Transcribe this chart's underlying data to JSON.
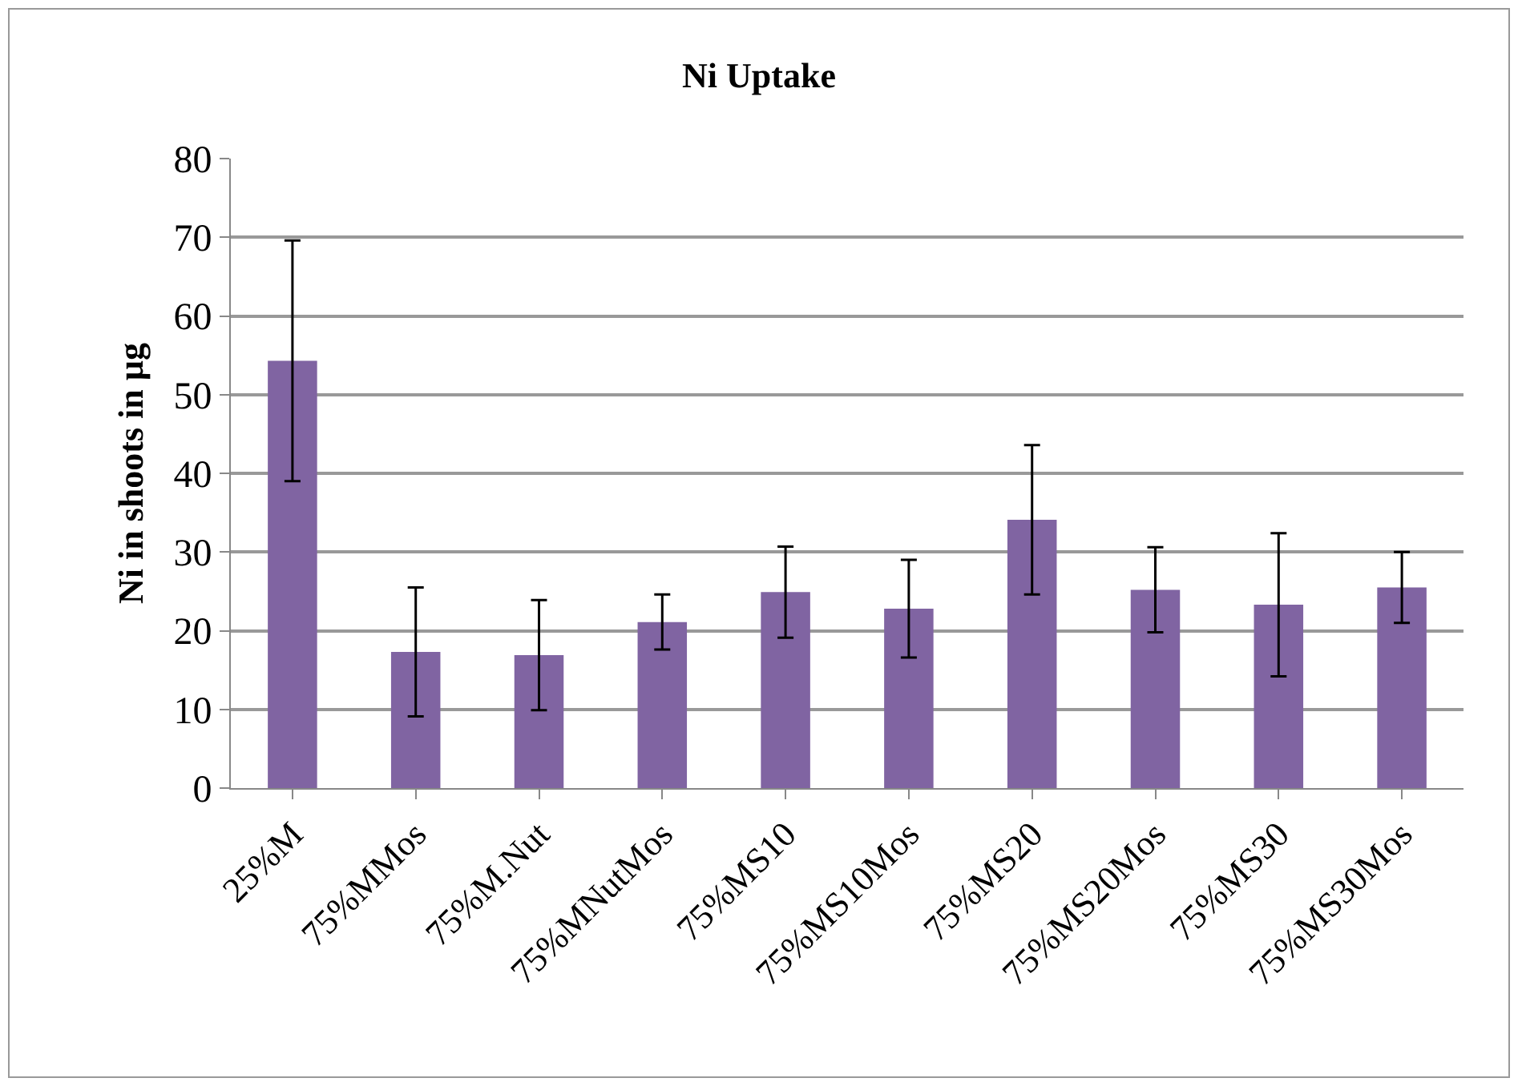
{
  "chart_data": {
    "type": "bar",
    "title": "Ni Uptake",
    "ylabel": "Ni in shoots in µg",
    "categories": [
      "25%M",
      "75%MMos",
      "75%M.Nut",
      "75%MNutMos",
      "75%MS10",
      "75%MS10Mos",
      "75%MS20",
      "75%MS20Mos",
      "75%MS30",
      "75%MS30Mos"
    ],
    "values": [
      54.3,
      17.3,
      16.9,
      21.1,
      24.9,
      22.8,
      34.1,
      25.2,
      23.3,
      25.5
    ],
    "errors": [
      15.3,
      8.2,
      7,
      3.5,
      5.8,
      6.2,
      9.5,
      5.4,
      9.1,
      4.5
    ],
    "color": "#8064a2",
    "ylim": [
      0,
      80
    ],
    "yticks": [
      0,
      10,
      20,
      30,
      40,
      50,
      60,
      70,
      80
    ],
    "grid": "y",
    "legend": false
  }
}
